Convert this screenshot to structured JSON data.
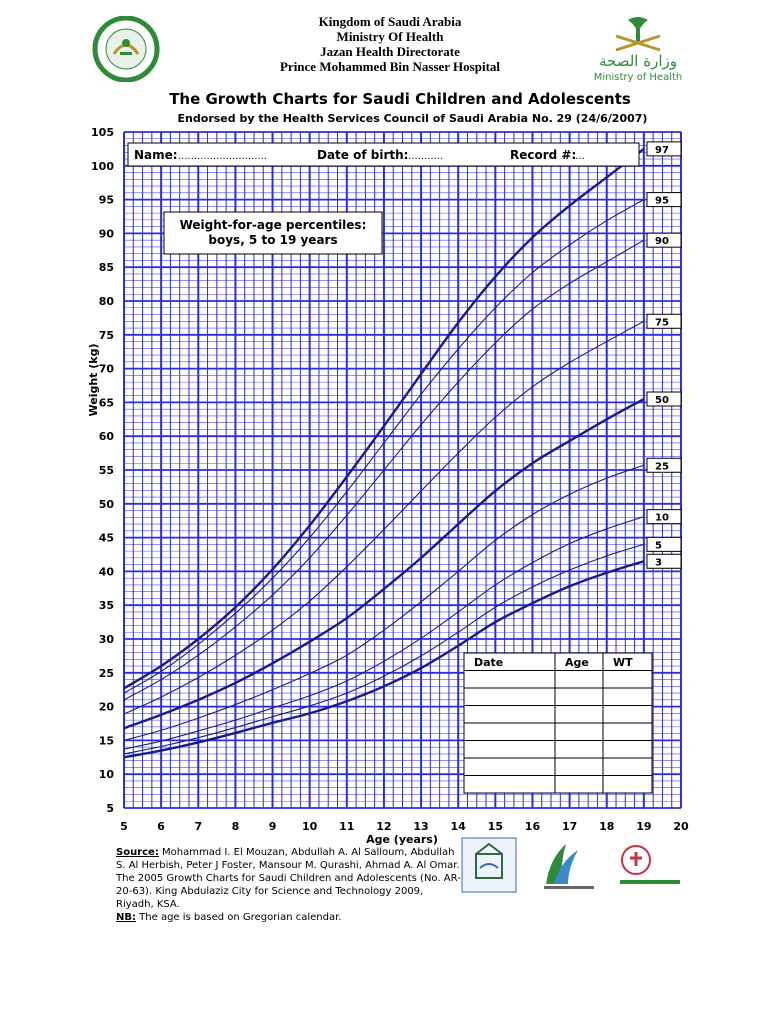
{
  "header": {
    "line1": "Kingdom of Saudi Arabia",
    "line2": "Ministry Of Health",
    "line3": "Jazan Health Directorate",
    "line4": "Prince Mohammed Bin Nasser Hospital",
    "moh_arabic": "وزارة الصحة",
    "moh_english": "Ministry of Health"
  },
  "title": "The Growth Charts for Saudi Children and Adolescents",
  "subtitle": "Endorsed by the Health Services Council of Saudi Arabia No. 29 (24/6/2007)",
  "form": {
    "name_label": "Name:",
    "name_dots": "............................",
    "dob_label": "Date of birth:",
    "dob_dots": "............",
    "record_label": "Record #:",
    "record_dots": "...."
  },
  "chart_data": {
    "type": "line",
    "title": "Weight-for-age percentiles:",
    "subtitle": "boys, 5 to 19 years",
    "xlabel": "Age (years)",
    "ylabel": "Weight (kg)",
    "xlim": [
      5,
      20
    ],
    "ylim": [
      5,
      105
    ],
    "x_ticks": [
      5,
      6,
      7,
      8,
      9,
      10,
      11,
      12,
      13,
      14,
      15,
      16,
      17,
      18,
      19,
      20
    ],
    "y_ticks": [
      5,
      10,
      15,
      20,
      25,
      30,
      35,
      40,
      45,
      50,
      55,
      60,
      65,
      70,
      75,
      80,
      85,
      90,
      95,
      100,
      105
    ],
    "grid": true,
    "x": [
      5,
      6,
      7,
      8,
      9,
      10,
      11,
      12,
      13,
      14,
      15,
      16,
      17,
      18,
      19
    ],
    "series": [
      {
        "name": "3",
        "values": [
          12.5,
          13.5,
          14.7,
          16.1,
          17.6,
          19.0,
          20.8,
          23.0,
          25.7,
          29.0,
          32.5,
          35.3,
          37.8,
          39.8,
          41.5
        ]
      },
      {
        "name": "5",
        "values": [
          13.0,
          14.1,
          15.4,
          16.9,
          18.5,
          20.1,
          22.0,
          24.5,
          27.5,
          31.0,
          34.7,
          37.7,
          40.2,
          42.3,
          44.0
        ]
      },
      {
        "name": "10",
        "values": [
          13.7,
          14.9,
          16.4,
          18.0,
          19.8,
          21.6,
          23.8,
          26.7,
          30.1,
          34.0,
          38.0,
          41.3,
          44.1,
          46.3,
          48.1
        ]
      },
      {
        "name": "25",
        "values": [
          15.0,
          16.5,
          18.3,
          20.3,
          22.5,
          24.9,
          27.6,
          31.3,
          35.5,
          40.0,
          44.6,
          48.4,
          51.4,
          53.8,
          55.7
        ]
      },
      {
        "name": "50",
        "values": [
          16.8,
          18.8,
          21.0,
          23.5,
          26.4,
          29.6,
          33.1,
          37.4,
          42.0,
          47.0,
          51.9,
          56.0,
          59.3,
          62.5,
          65.5
        ]
      },
      {
        "name": "75",
        "values": [
          18.9,
          21.4,
          24.3,
          27.6,
          31.3,
          35.6,
          40.7,
          46.2,
          51.9,
          57.5,
          62.8,
          67.3,
          70.9,
          74.0,
          77.0
        ]
      },
      {
        "name": "90",
        "values": [
          21.0,
          24.0,
          27.6,
          31.8,
          36.5,
          42.0,
          48.3,
          55.0,
          61.7,
          68.0,
          73.8,
          78.8,
          82.6,
          85.8,
          89.0
        ]
      },
      {
        "name": "95",
        "values": [
          22.0,
          25.2,
          29.2,
          33.8,
          39.0,
          45.0,
          51.8,
          59.0,
          66.2,
          72.9,
          79.0,
          84.2,
          88.3,
          91.9,
          95.0
        ]
      },
      {
        "name": "97",
        "values": [
          22.7,
          26.0,
          30.0,
          34.7,
          40.3,
          46.8,
          54.0,
          61.5,
          69.2,
          76.8,
          83.6,
          89.4,
          94.1,
          98.3,
          102.5
        ]
      }
    ],
    "bold_series": [
      "3",
      "50",
      "97"
    ]
  },
  "record_table": {
    "headers": [
      "Date",
      "Age",
      "WT"
    ],
    "rows": [
      [
        "",
        "",
        ""
      ],
      [
        "",
        "",
        ""
      ],
      [
        "",
        "",
        ""
      ],
      [
        "",
        "",
        ""
      ],
      [
        "",
        "",
        ""
      ],
      [
        "",
        "",
        ""
      ],
      [
        "",
        "",
        ""
      ]
    ]
  },
  "source": {
    "label": "Source:",
    "text": " Mohammad I. El Mouzan, Abdullah A. Al Salloum, Abdullah S. Al Herbish, Peter J Foster, Mansour M. Qurashi, Ahmad A. Al Omar. The 2005 Growth Charts for Saudi Children and Adolescents (No. AR-20-63). King Abdulaziz City for Science and Technology 2009, Riyadh, KSA.",
    "nb_label": "NB:",
    "nb_text": " The age is based on Gregorian calendar."
  },
  "colors": {
    "grid": "#2d2de0",
    "curve": "#1a1a8c",
    "green": "#2e8b3a",
    "gold": "#b8962e"
  }
}
